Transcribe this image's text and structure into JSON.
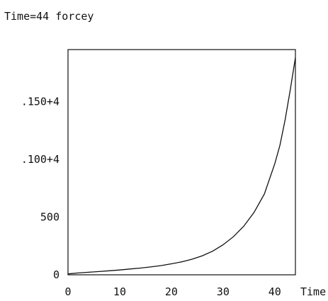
{
  "chart_data": {
    "type": "line",
    "title": "Time=44 forcey",
    "xlabel": "Time",
    "ylabel": "",
    "xlim": [
      0,
      44
    ],
    "ylim": [
      0,
      1950
    ],
    "x_ticks": [
      {
        "value": 0,
        "label": "0"
      },
      {
        "value": 10,
        "label": "10"
      },
      {
        "value": 20,
        "label": "20"
      },
      {
        "value": 30,
        "label": "30"
      },
      {
        "value": 40,
        "label": "40"
      }
    ],
    "y_ticks": [
      {
        "value": 0,
        "label": "0"
      },
      {
        "value": 500,
        "label": "500"
      },
      {
        "value": 1000,
        "label": ".100+4"
      },
      {
        "value": 1500,
        "label": ".150+4"
      }
    ],
    "series": [
      {
        "x": [
          0,
          2,
          4,
          6,
          8,
          10,
          12,
          14,
          16,
          18,
          20,
          22,
          24,
          26,
          28,
          30,
          32,
          34,
          36,
          38,
          40,
          41,
          42,
          43,
          44
        ],
        "y": [
          8,
          16,
          22,
          28,
          35,
          42,
          50,
          58,
          68,
          80,
          95,
          112,
          135,
          165,
          205,
          260,
          330,
          420,
          540,
          700,
          960,
          1120,
          1340,
          1600,
          1880
        ]
      }
    ],
    "grid": false,
    "color": "#111111"
  }
}
